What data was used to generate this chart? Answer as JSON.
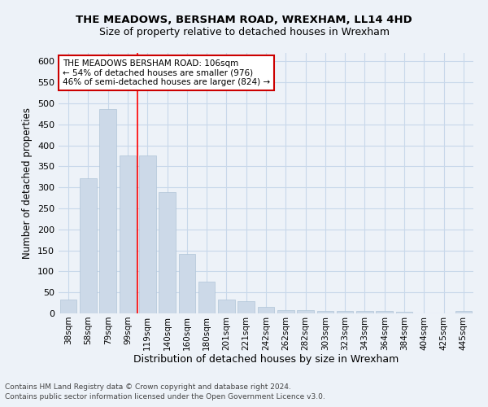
{
  "title1": "THE MEADOWS, BERSHAM ROAD, WREXHAM, LL14 4HD",
  "title2": "Size of property relative to detached houses in Wrexham",
  "xlabel": "Distribution of detached houses by size in Wrexham",
  "ylabel": "Number of detached properties",
  "footnote1": "Contains HM Land Registry data © Crown copyright and database right 2024.",
  "footnote2": "Contains public sector information licensed under the Open Government Licence v3.0.",
  "categories": [
    "38sqm",
    "58sqm",
    "79sqm",
    "99sqm",
    "119sqm",
    "140sqm",
    "160sqm",
    "180sqm",
    "201sqm",
    "221sqm",
    "242sqm",
    "262sqm",
    "282sqm",
    "303sqm",
    "323sqm",
    "343sqm",
    "364sqm",
    "384sqm",
    "404sqm",
    "425sqm",
    "445sqm"
  ],
  "values": [
    32,
    322,
    487,
    375,
    375,
    289,
    142,
    75,
    32,
    30,
    15,
    8,
    8,
    6,
    6,
    5,
    5,
    4,
    0,
    0,
    6
  ],
  "bar_color": "#ccd9e8",
  "bar_edge_color": "#b0c4d8",
  "grid_color": "#c8d8ea",
  "background_color": "#edf2f8",
  "red_line_x": 3.5,
  "annotation_text": "THE MEADOWS BERSHAM ROAD: 106sqm\n← 54% of detached houses are smaller (976)\n46% of semi-detached houses are larger (824) →",
  "annotation_box_color": "#ffffff",
  "annotation_border_color": "#cc0000",
  "ylim": [
    0,
    620
  ],
  "yticks": [
    0,
    50,
    100,
    150,
    200,
    250,
    300,
    350,
    400,
    450,
    500,
    550,
    600
  ]
}
